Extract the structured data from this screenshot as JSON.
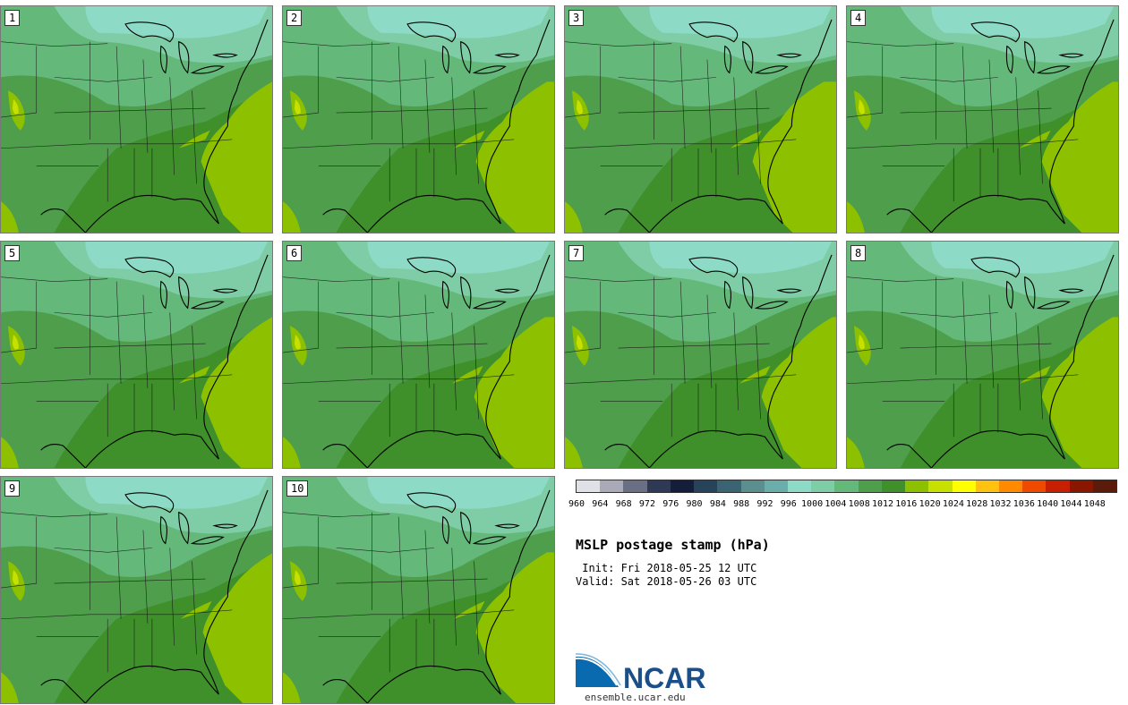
{
  "panels": [
    {
      "label": "1",
      "east_coast_shift": 0
    },
    {
      "label": "2",
      "east_coast_shift": -8
    },
    {
      "label": "3",
      "east_coast_shift": -14
    },
    {
      "label": "4",
      "east_coast_shift": -6
    },
    {
      "label": "5",
      "east_coast_shift": 0
    },
    {
      "label": "6",
      "east_coast_shift": -10
    },
    {
      "label": "7",
      "east_coast_shift": -4
    },
    {
      "label": "8",
      "east_coast_shift": -6
    },
    {
      "label": "9",
      "east_coast_shift": 2
    },
    {
      "label": "10",
      "east_coast_shift": -8
    }
  ],
  "colorbar": {
    "colors": [
      "#dfe1e6",
      "#a9aab8",
      "#6b6f85",
      "#2e3a55",
      "#141e3c",
      "#27435a",
      "#3b6472",
      "#5b8f8f",
      "#6aadaa",
      "#8ddbc6",
      "#7fcda6",
      "#64b97a",
      "#4e9e4c",
      "#3f8f2b",
      "#8dc100",
      "#c8e000",
      "#ffff00",
      "#ffc20e",
      "#ff8a00",
      "#f04a00",
      "#c62000",
      "#8b1600",
      "#5c1a0a"
    ],
    "labels": [
      "960",
      "964",
      "968",
      "972",
      "976",
      "980",
      "984",
      "988",
      "992",
      "996",
      "1000",
      "1004",
      "1008",
      "1012",
      "1016",
      "1020",
      "1024",
      "1028",
      "1032",
      "1036",
      "1040",
      "1044",
      "1048"
    ]
  },
  "title": "MSLP postage stamp (hPa)",
  "init": " Init: Fri 2018-05-25 12 UTC",
  "valid": "Valid: Sat 2018-05-26 03 UTC",
  "logo": {
    "text": "NCAR",
    "site": "ensemble.ucar.edu"
  }
}
